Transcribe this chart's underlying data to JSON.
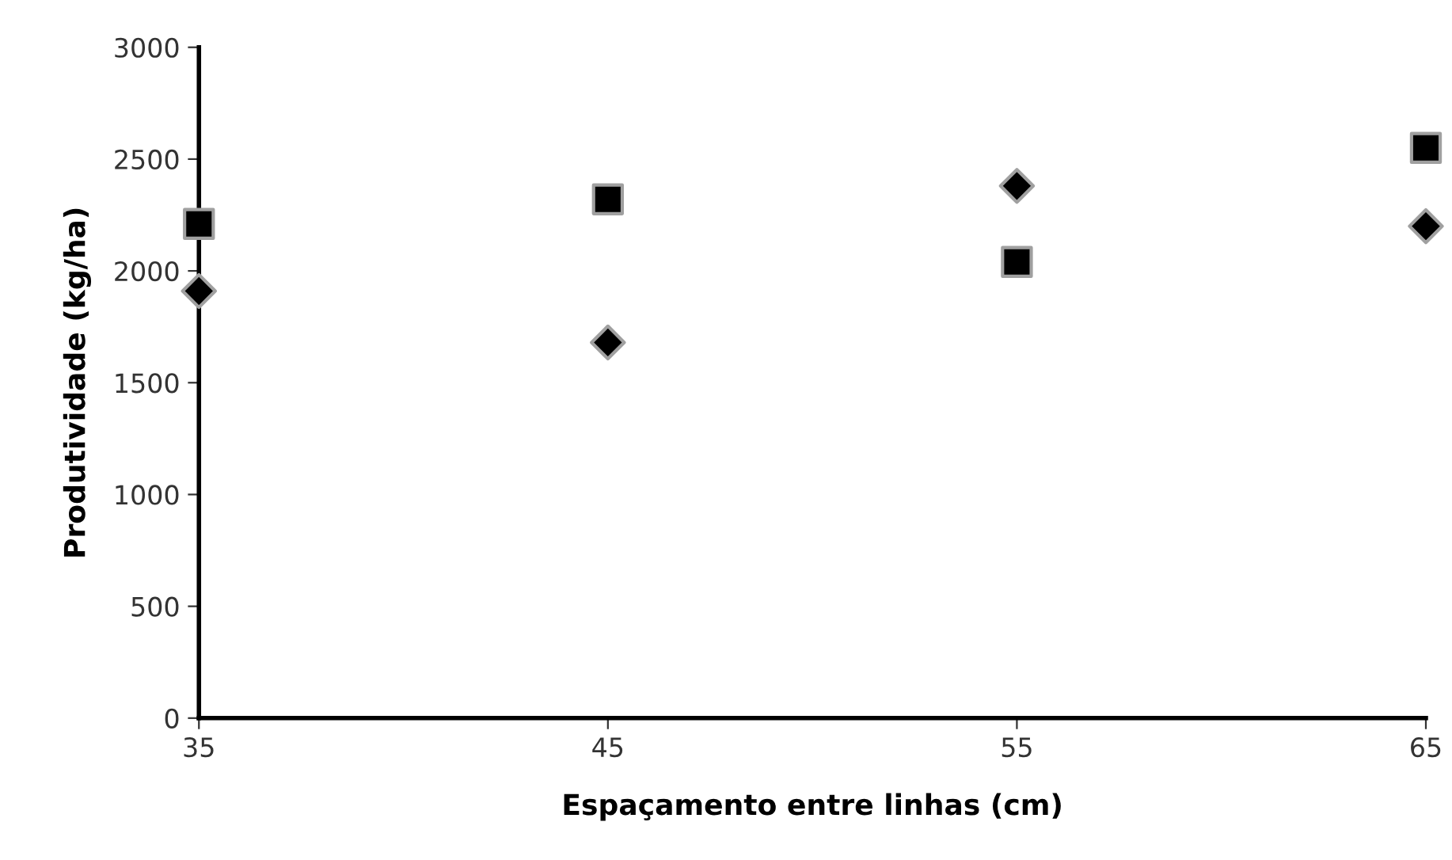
{
  "chart_data": {
    "type": "scatter",
    "xlabel": "Espaçamento entre linhas (cm)",
    "ylabel": "Produtividade (kg/ha)",
    "x": [
      35,
      45,
      55,
      65
    ],
    "series": [
      {
        "color": "#000000",
        "marker": "square",
        "values": [
          2210,
          2320,
          2040,
          2550
        ]
      },
      {
        "color": "#000000",
        "marker": "diamond",
        "values": [
          1910,
          1680,
          2380,
          2200
        ]
      }
    ],
    "xlim": [
      35,
      65
    ],
    "xticks": [
      35,
      45,
      55,
      65
    ],
    "ylim": [
      0,
      3000
    ],
    "yticks": [
      0,
      500,
      1000,
      1500,
      2000,
      2500,
      3000
    ],
    "grid": false,
    "legend": false
  }
}
